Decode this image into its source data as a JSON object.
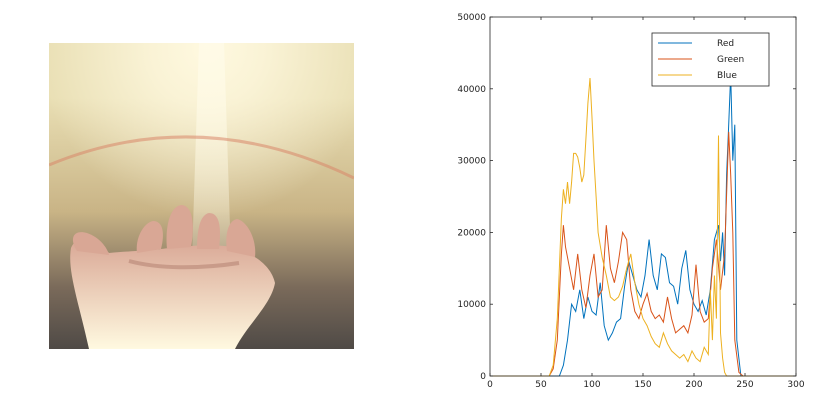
{
  "photo": {
    "subject": "hand-reaching-toward-sunlight-photo",
    "colors": {
      "sky": "#e9dfb4",
      "sun": "#fff9e0",
      "haze": "#c9b486",
      "ground": "#7a6a5a",
      "dark": "#4f4a46",
      "skin": "#d9a795",
      "skin_shadow": "#b07c6c",
      "flare": "#d9866a"
    }
  },
  "chart_data": {
    "type": "line",
    "title": "",
    "xlabel": "",
    "ylabel": "",
    "xlim": [
      0,
      300
    ],
    "ylim": [
      0,
      50000
    ],
    "xticks": [
      0,
      50,
      100,
      150,
      200,
      250,
      300
    ],
    "yticks": [
      0,
      10000,
      20000,
      30000,
      40000,
      50000
    ],
    "grid": false,
    "legend": "top-right",
    "series": [
      {
        "name": "Red",
        "color": "#0072bd",
        "x": [
          0,
          60,
          68,
          72,
          76,
          80,
          84,
          88,
          92,
          96,
          100,
          104,
          108,
          112,
          116,
          120,
          124,
          128,
          132,
          136,
          140,
          144,
          148,
          152,
          156,
          160,
          164,
          168,
          172,
          176,
          180,
          184,
          188,
          192,
          196,
          200,
          204,
          208,
          212,
          216,
          220,
          224,
          226,
          228,
          230,
          232,
          234,
          236,
          238,
          240,
          242,
          246,
          250,
          300
        ],
        "y": [
          0,
          0,
          0,
          1500,
          5000,
          10000,
          9000,
          12000,
          8000,
          11000,
          9000,
          8500,
          13000,
          7000,
          5000,
          6000,
          7500,
          8000,
          12500,
          16000,
          14000,
          12000,
          11000,
          14000,
          19000,
          14000,
          12000,
          17000,
          16500,
          13000,
          12500,
          10000,
          15000,
          17500,
          12000,
          10000,
          9000,
          10500,
          8500,
          12000,
          19000,
          21000,
          16000,
          20000,
          14000,
          28000,
          35000,
          42000,
          30000,
          35000,
          5000,
          0,
          0,
          0
        ]
      },
      {
        "name": "Green",
        "color": "#d95319",
        "x": [
          0,
          58,
          62,
          66,
          70,
          72,
          74,
          78,
          82,
          86,
          90,
          94,
          98,
          102,
          106,
          110,
          114,
          118,
          122,
          126,
          130,
          134,
          138,
          142,
          146,
          150,
          154,
          158,
          162,
          166,
          170,
          174,
          178,
          182,
          186,
          190,
          194,
          198,
          202,
          206,
          210,
          214,
          218,
          222,
          226,
          230,
          234,
          236,
          238,
          240,
          244,
          248,
          300
        ],
        "y": [
          0,
          0,
          1000,
          5000,
          17000,
          21000,
          18000,
          15000,
          12000,
          17000,
          12000,
          9500,
          14000,
          17000,
          11000,
          12000,
          21000,
          15000,
          13000,
          16000,
          20000,
          19000,
          12000,
          9000,
          8000,
          10000,
          11500,
          9000,
          8000,
          8500,
          7500,
          11000,
          8000,
          6000,
          6500,
          7000,
          6000,
          8500,
          15500,
          9000,
          7500,
          8000,
          15000,
          19000,
          12000,
          17000,
          34000,
          28000,
          20000,
          5000,
          500,
          0,
          0
        ]
      },
      {
        "name": "Blue",
        "color": "#edb120",
        "x": [
          0,
          50,
          54,
          58,
          62,
          66,
          70,
          72,
          74,
          76,
          78,
          80,
          82,
          84,
          86,
          88,
          90,
          92,
          94,
          96,
          98,
          100,
          102,
          104,
          106,
          110,
          114,
          118,
          122,
          126,
          130,
          134,
          138,
          142,
          146,
          150,
          154,
          158,
          162,
          166,
          170,
          174,
          178,
          182,
          186,
          190,
          194,
          198,
          202,
          206,
          210,
          214,
          216,
          218,
          220,
          222,
          224,
          226,
          228,
          230,
          232,
          236,
          240,
          300
        ],
        "y": [
          0,
          0,
          0,
          0,
          1500,
          8000,
          22000,
          26000,
          24000,
          27000,
          24000,
          27000,
          31000,
          31000,
          30500,
          29000,
          27000,
          28000,
          33000,
          38000,
          41500,
          36000,
          30000,
          25000,
          20000,
          16500,
          14000,
          11000,
          10500,
          11000,
          12500,
          15000,
          17000,
          13000,
          10000,
          8000,
          7000,
          5500,
          4500,
          4000,
          6000,
          4500,
          3500,
          3000,
          2500,
          3000,
          2000,
          3500,
          2500,
          2000,
          4000,
          3000,
          12000,
          5000,
          14000,
          8000,
          33500,
          6000,
          2500,
          500,
          0,
          0,
          0,
          0
        ]
      }
    ]
  }
}
